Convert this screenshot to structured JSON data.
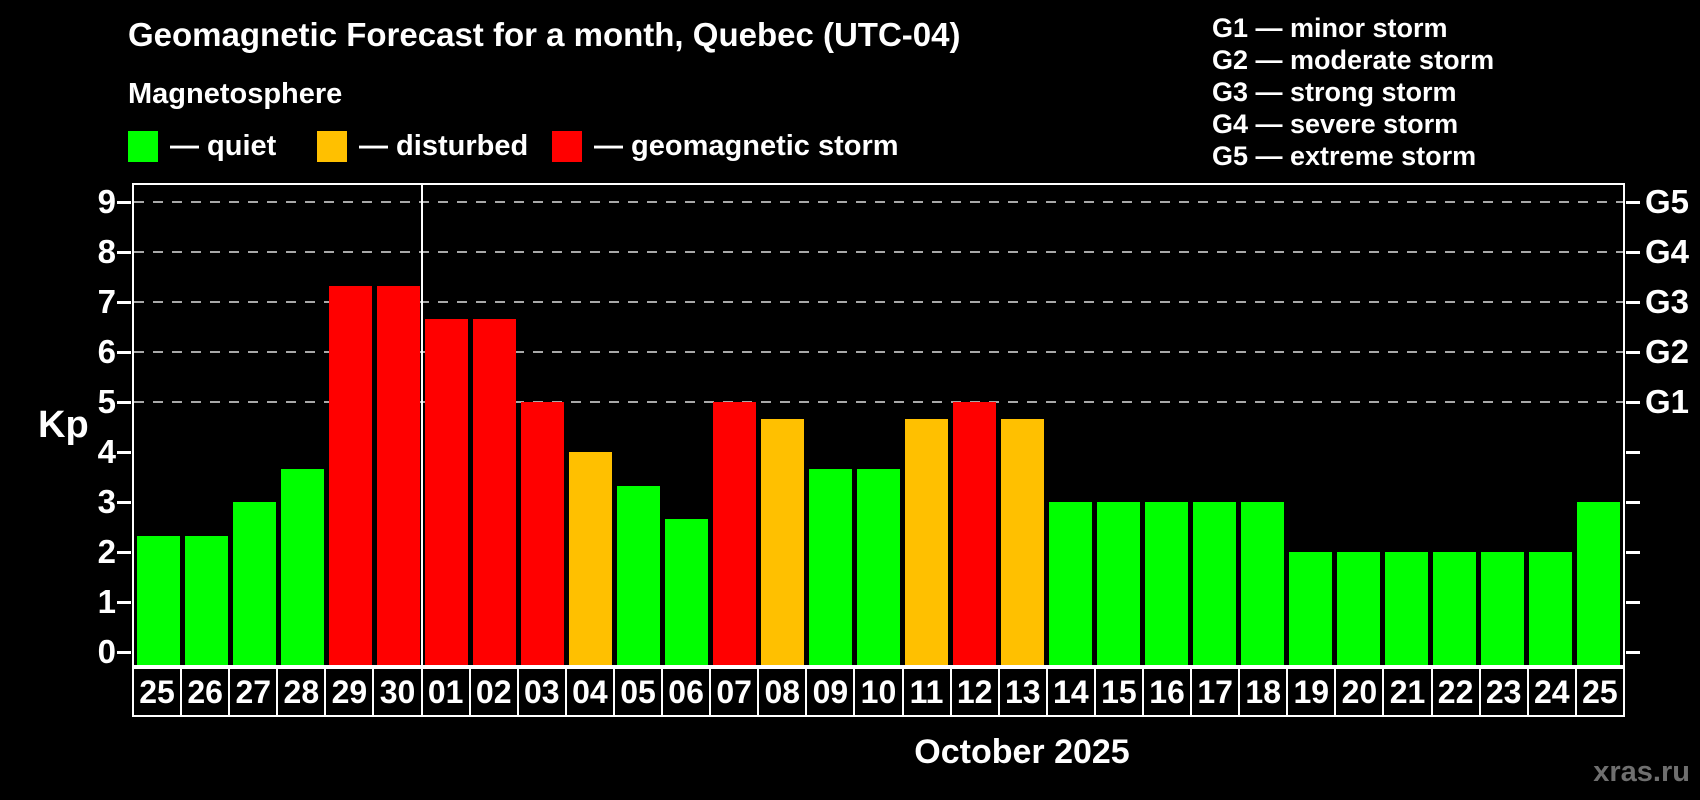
{
  "header": {
    "title": "Geomagnetic Forecast for a month, Quebec (UTC-04)",
    "subtitle": "Magnetosphere",
    "watermark": "xras.ru"
  },
  "legend": {
    "items": [
      {
        "name": "quiet",
        "label": "— quiet",
        "color": "#00ff00"
      },
      {
        "name": "disturbed",
        "label": "— disturbed",
        "color": "#ffc000"
      },
      {
        "name": "storm",
        "label": "— geomagnetic storm",
        "color": "#ff0000"
      }
    ]
  },
  "gscale_legend": {
    "items": [
      "G1 — minor storm",
      "G2 — moderate storm",
      "G3 — strong storm",
      "G4 — severe storm",
      "G5 — extreme storm"
    ]
  },
  "chart_data": {
    "type": "bar",
    "title": "Geomagnetic Forecast for a month, Quebec (UTC-04)",
    "ylabel": "Kp",
    "xlabel": "October 2025",
    "ylim": [
      0,
      9
    ],
    "y_ticks": [
      "0",
      "1",
      "2",
      "3",
      "4",
      "5",
      "6",
      "7",
      "8",
      "9"
    ],
    "grid_kp_levels": [
      5,
      6,
      7,
      8,
      9
    ],
    "grid_on": true,
    "legend_position": "top-left",
    "right_axis_labels": [
      {
        "kp": 9,
        "label": "G5"
      },
      {
        "kp": 8,
        "label": "G4"
      },
      {
        "kp": 7,
        "label": "G3"
      },
      {
        "kp": 6,
        "label": "G2"
      },
      {
        "kp": 5,
        "label": "G1"
      }
    ],
    "categories": [
      "25",
      "26",
      "27",
      "28",
      "29",
      "30",
      "01",
      "02",
      "03",
      "04",
      "05",
      "06",
      "07",
      "08",
      "09",
      "10",
      "11",
      "12",
      "13",
      "14",
      "15",
      "16",
      "17",
      "18",
      "19",
      "20",
      "21",
      "22",
      "23",
      "24",
      "25"
    ],
    "values": [
      2.33,
      2.33,
      3.0,
      3.67,
      7.33,
      7.33,
      6.67,
      6.67,
      5.0,
      4.0,
      3.33,
      2.67,
      5.0,
      4.67,
      3.67,
      3.67,
      4.67,
      5.0,
      4.67,
      3.0,
      3.0,
      3.0,
      3.0,
      3.0,
      2.0,
      2.0,
      2.0,
      2.0,
      2.0,
      2.0,
      3.0
    ],
    "statuses": [
      "quiet",
      "quiet",
      "quiet",
      "quiet",
      "storm",
      "storm",
      "storm",
      "storm",
      "storm",
      "disturbed",
      "quiet",
      "quiet",
      "storm",
      "disturbed",
      "quiet",
      "quiet",
      "disturbed",
      "storm",
      "disturbed",
      "quiet",
      "quiet",
      "quiet",
      "quiet",
      "quiet",
      "quiet",
      "quiet",
      "quiet",
      "quiet",
      "quiet",
      "quiet",
      "quiet"
    ],
    "status_colors": {
      "quiet": "#00ff00",
      "disturbed": "#ffc000",
      "storm": "#ff0000"
    },
    "month_separator_after_index": 6
  }
}
